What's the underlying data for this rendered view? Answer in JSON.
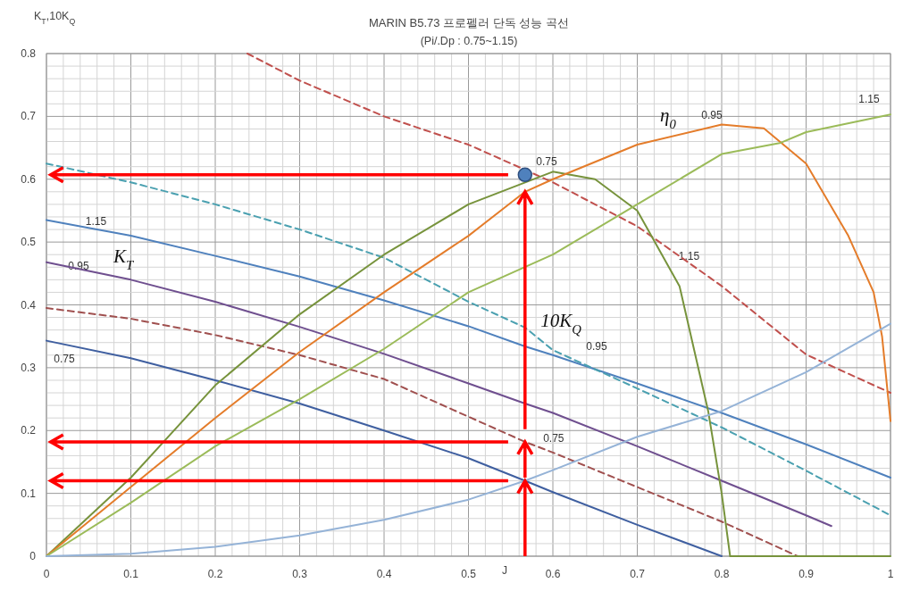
{
  "chart_data": {
    "type": "line",
    "title": "MARIN B5.73 프로펠러 단독 성능 곡선",
    "subtitle": "(Pi/.Dp : 0.75~1.15)",
    "xlabel": "J",
    "ylabel": "K$_{T}$,10K$_{Q}$",
    "xlim": [
      0,
      1
    ],
    "ylim": [
      0,
      0.8
    ],
    "xticks": [
      0,
      0.1,
      0.2,
      0.3,
      0.4,
      0.5,
      0.6,
      0.7,
      0.8,
      0.9,
      1
    ],
    "yticks": [
      0,
      0.1,
      0.2,
      0.3,
      0.4,
      0.5,
      0.6,
      0.7,
      0.8
    ],
    "grid": true,
    "marker": "none",
    "line_style": "solid",
    "series": [
      {
        "name": "0.75",
        "color": "#3f5fa0",
        "x": [
          0,
          0.1,
          0.2,
          0.3,
          0.4,
          0.5,
          0.567,
          0.6,
          0.7,
          0.8
        ],
        "values": [
          0.343,
          0.315,
          0.28,
          0.243,
          0.2,
          0.156,
          0.12,
          0.102,
          0.05,
          0
        ]
      },
      {
        "name": "0.95",
        "color": "#6f4f8f",
        "x": [
          0,
          0.1,
          0.2,
          0.3,
          0.4,
          0.5,
          0.567,
          0.6,
          0.7,
          0.8,
          0.9,
          0.93
        ],
        "values": [
          0.468,
          0.44,
          0.405,
          0.365,
          0.322,
          0.275,
          0.243,
          0.228,
          0.175,
          0.12,
          0.065,
          0.048
        ]
      },
      {
        "name": "1.15",
        "color": "#4f81bd",
        "x": [
          0,
          0.1,
          0.2,
          0.3,
          0.4,
          0.5,
          0.567,
          0.6,
          0.7,
          0.8,
          0.9,
          1
        ],
        "values": [
          0.535,
          0.51,
          0.478,
          0.445,
          0.407,
          0.366,
          0.334,
          0.32,
          0.275,
          0.228,
          0.178,
          0.125
        ]
      },
      {
        "name": "0.75",
        "color": "#a0504f",
        "line_style": "dashed",
        "x": [
          0,
          0.1,
          0.2,
          0.3,
          0.4,
          0.5,
          0.567,
          0.6,
          0.7,
          0.8,
          0.89
        ],
        "values": [
          0.395,
          0.378,
          0.352,
          0.32,
          0.282,
          0.222,
          0.182,
          0.165,
          0.11,
          0.055,
          0
        ]
      },
      {
        "name": "0.95",
        "color": "#4aa0b0",
        "line_style": "dashed",
        "x": [
          0,
          0.1,
          0.2,
          0.3,
          0.4,
          0.5,
          0.567,
          0.6,
          0.7,
          0.8,
          0.9,
          1
        ],
        "values": [
          0.625,
          0.595,
          0.56,
          0.52,
          0.475,
          0.405,
          0.364,
          0.328,
          0.267,
          0.205,
          0.136,
          0.065
        ]
      },
      {
        "name": "1.15",
        "color": "#c0504d",
        "line_style": "dashed",
        "x": [
          0.238,
          0.3,
          0.4,
          0.5,
          0.567,
          0.6,
          0.7,
          0.8,
          0.9,
          1
        ],
        "values": [
          0.8,
          0.757,
          0.7,
          0.655,
          0.615,
          0.595,
          0.525,
          0.43,
          0.321,
          0.26
        ]
      },
      {
        "name": "0.75",
        "color": "#77933c",
        "x": [
          0,
          0.1,
          0.2,
          0.3,
          0.4,
          0.5,
          0.6,
          0.65,
          0.7,
          0.75,
          0.784,
          0.8,
          0.81,
          0.9,
          1
        ],
        "values": [
          0,
          0.125,
          0.272,
          0.385,
          0.48,
          0.56,
          0.612,
          0.6,
          0.55,
          0.43,
          0.231,
          0.1,
          0,
          0,
          0
        ]
      },
      {
        "name": "0.95",
        "color": "#e47c2a",
        "x": [
          0,
          0.1,
          0.2,
          0.3,
          0.4,
          0.5,
          0.567,
          0.6,
          0.7,
          0.8,
          0.85,
          0.9,
          0.95,
          0.98,
          0.99,
          1
        ],
        "values": [
          0,
          0.11,
          0.22,
          0.325,
          0.42,
          0.51,
          0.58,
          0.6,
          0.655,
          0.687,
          0.681,
          0.625,
          0.51,
          0.42,
          0.35,
          0.215
        ]
      },
      {
        "name": "1.15",
        "color": "#9bbb59",
        "x": [
          0,
          0.1,
          0.2,
          0.3,
          0.4,
          0.5,
          0.6,
          0.7,
          0.8,
          0.87,
          0.9,
          1
        ],
        "values": [
          0,
          0.085,
          0.175,
          0.25,
          0.33,
          0.42,
          0.48,
          0.56,
          0.64,
          0.658,
          0.675,
          0.703
        ]
      },
      {
        "color": "#95b3d7",
        "x": [
          0,
          0.1,
          0.2,
          0.3,
          0.4,
          0.5,
          0.567,
          0.6,
          0.7,
          0.8,
          0.9,
          1
        ],
        "values": [
          0,
          0.004,
          0.015,
          0.033,
          0.058,
          0.09,
          0.12,
          0.137,
          0.19,
          0.231,
          0.293,
          0.37
        ]
      },
      {
        "type": "scatter",
        "marker": "circle",
        "color": "#4f81bd",
        "x": [
          0.567
        ],
        "values": [
          0.607
        ]
      }
    ],
    "ref_lines": [
      {
        "axis": "y",
        "value": 0.607,
        "color": "#ff0000"
      },
      {
        "axis": "y",
        "value": 0.182,
        "color": "#ff0000"
      },
      {
        "axis": "y",
        "value": 0.12,
        "color": "#ff0000"
      },
      {
        "axis": "x",
        "value": 0.567,
        "color": "#ff0000"
      }
    ],
    "annotations": [
      "K$_{T}$",
      "10K$_{Q}$",
      "η$_{0}$"
    ]
  }
}
